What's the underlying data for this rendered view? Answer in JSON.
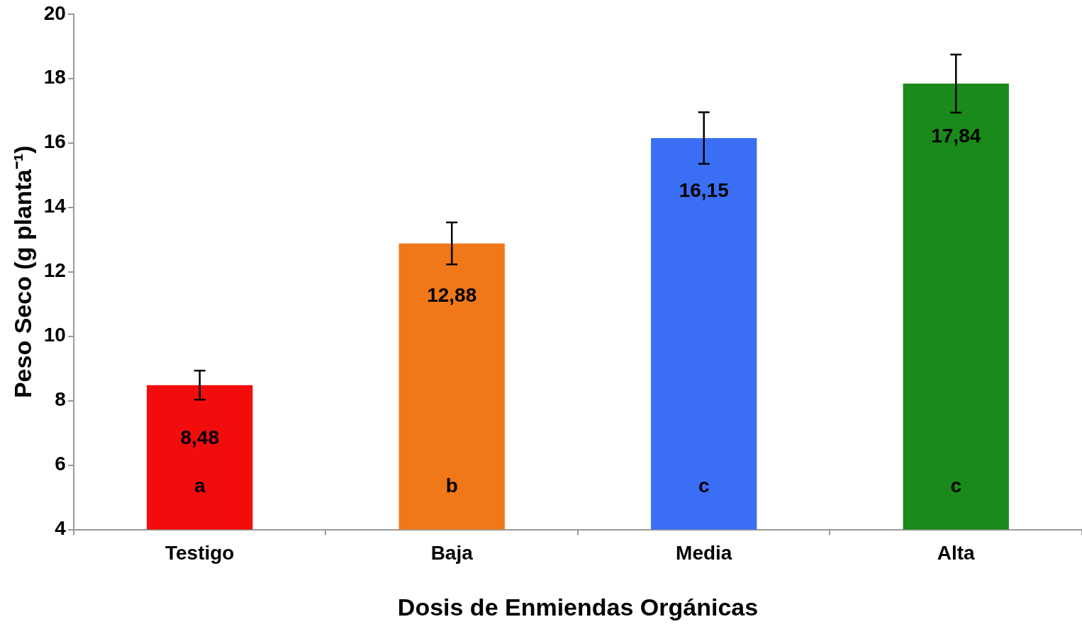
{
  "chart_data": {
    "type": "bar",
    "xlabel": "Dosis de Enmiendas Orgánicas",
    "ylabel": "Peso Seco (g planta⁻¹)",
    "categories": [
      "Testigo",
      "Baja",
      "Media",
      "Alta"
    ],
    "values": [
      8.48,
      12.88,
      16.15,
      17.84
    ],
    "colors": [
      "#f20c0c",
      "#f07818",
      "#3a6ff5",
      "#1a8a1a"
    ],
    "errors": [
      0.45,
      0.65,
      0.8,
      0.9
    ],
    "value_labels": [
      "8,48",
      "12,88",
      "16,15",
      "17,84"
    ],
    "annotations": [
      "a",
      "b",
      "c",
      "c"
    ],
    "ylim": [
      4,
      20
    ],
    "yticks": [
      4,
      6,
      8,
      10,
      12,
      14,
      16,
      18,
      20
    ],
    "grid": false,
    "legend": false
  }
}
